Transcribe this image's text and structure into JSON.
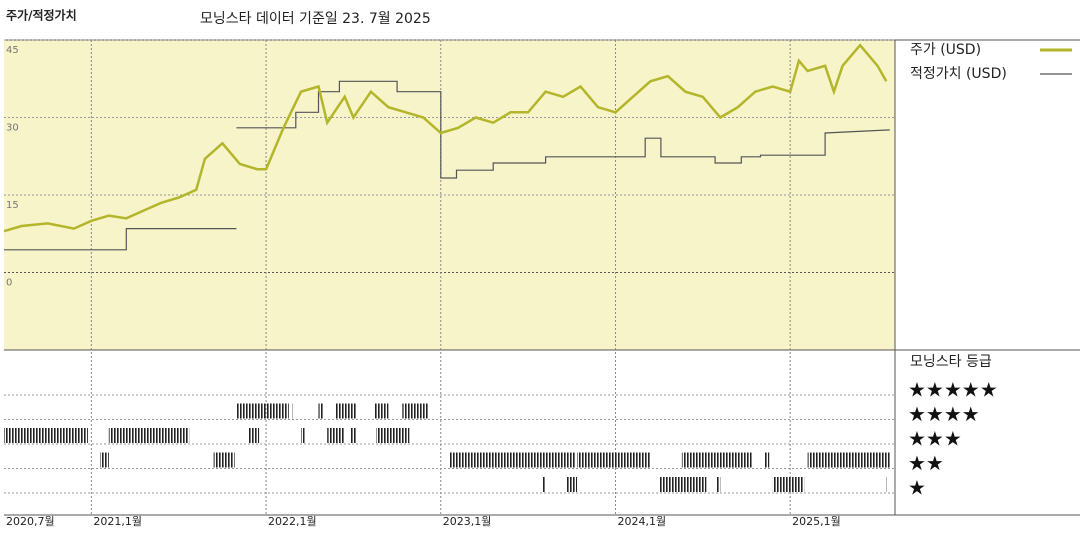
{
  "chart_data": {
    "type": "line",
    "title": "주가/적정가치",
    "subtitle": "모닝스타 데이터 기준일 23. 7월 2025",
    "xlim": [
      2020.5,
      2025.6
    ],
    "xticks": [
      {
        "value": 2020.5,
        "label": "2020,7월"
      },
      {
        "value": 2021,
        "label": "2021,1월"
      },
      {
        "value": 2022,
        "label": "2022,1월"
      },
      {
        "value": 2023,
        "label": "2023,1월"
      },
      {
        "value": 2024,
        "label": "2024,1월"
      },
      {
        "value": 2025,
        "label": "2025,1월"
      }
    ],
    "ylim": [
      -15,
      45
    ],
    "yticks": [
      0,
      15,
      30,
      45
    ],
    "grid": true,
    "series": [
      {
        "name": "주가 (USD)",
        "color": "#b3b52a",
        "x": [
          2020.5,
          2020.6,
          2020.75,
          2020.9,
          2021.0,
          2021.1,
          2021.2,
          2021.3,
          2021.4,
          2021.5,
          2021.6,
          2021.65,
          2021.75,
          2021.85,
          2021.95,
          2022.0,
          2022.1,
          2022.2,
          2022.3,
          2022.35,
          2022.45,
          2022.5,
          2022.6,
          2022.7,
          2022.8,
          2022.9,
          2023.0,
          2023.1,
          2023.2,
          2023.3,
          2023.4,
          2023.5,
          2023.6,
          2023.7,
          2023.8,
          2023.9,
          2024.0,
          2024.1,
          2024.2,
          2024.3,
          2024.4,
          2024.5,
          2024.6,
          2024.7,
          2024.8,
          2024.9,
          2025.0,
          2025.05,
          2025.1,
          2025.2,
          2025.25,
          2025.3,
          2025.4,
          2025.5,
          2025.55
        ],
        "values": [
          8,
          9,
          9.5,
          8.5,
          10,
          11,
          10.5,
          12,
          13.5,
          14.5,
          16,
          22,
          25,
          21,
          20,
          20,
          28,
          35,
          36,
          29,
          34,
          30,
          35,
          32,
          31,
          30,
          27,
          28,
          30,
          29,
          31,
          31,
          35,
          34,
          36,
          32,
          31,
          34,
          37,
          38,
          35,
          34,
          30,
          32,
          35,
          36,
          35,
          41,
          39,
          40,
          35,
          40,
          44,
          40,
          37
        ]
      },
      {
        "name": "적정가치 (USD)",
        "color": "#555555",
        "x": [
          2020.5,
          2021.2,
          2021.2,
          2021.83,
          2021.83,
          2021.83,
          2022.17,
          2022.17,
          2022.3,
          2022.3,
          2022.42,
          2022.42,
          2022.75,
          2022.75,
          2023.0,
          2023.0,
          2023.09,
          2023.09,
          2023.3,
          2023.3,
          2023.6,
          2023.6,
          2024.17,
          2024.17,
          2024.26,
          2024.26,
          2024.57,
          2024.57,
          2024.72,
          2024.72,
          2024.83,
          2024.83,
          2025.2,
          2025.2,
          2025.57
        ],
        "values": [
          4.4,
          4.4,
          8.5,
          8.5,
          null,
          28,
          28,
          31,
          31,
          35,
          35,
          37,
          37,
          35,
          35,
          18.3,
          18.3,
          19.8,
          19.8,
          21.2,
          21.2,
          22.4,
          22.4,
          26,
          26,
          22.4,
          22.4,
          21.2,
          21.2,
          22.4,
          22.4,
          22.7,
          22.7,
          27,
          27.6
        ]
      }
    ],
    "rating_title": "모닝스타 등급",
    "rating_labels": [
      "★★★★★",
      "★★★★",
      "★★★",
      "★★",
      "★"
    ],
    "rating_periods": {
      "start": [
        2020.5,
        2021.1,
        2021.7,
        2021.83,
        2022.15,
        2022.3,
        2022.4,
        2022.62,
        2022.78,
        2021.05,
        2021.9,
        2022.2,
        2022.35,
        2022.48,
        2022.63,
        2023.05,
        2023.78,
        2024.38,
        2024.85,
        2025.1,
        2023.58,
        2023.72,
        2024.25,
        2024.58,
        2024.9,
        2025.55
      ],
      "end": [
        2020.98,
        2021.56,
        2021.82,
        2022.13,
        2022.16,
        2022.33,
        2022.52,
        2022.7,
        2022.93,
        2021.1,
        2021.96,
        2022.22,
        2022.45,
        2022.52,
        2022.82,
        2023.77,
        2024.2,
        2024.78,
        2024.88,
        2025.57,
        2023.6,
        2023.78,
        2024.52,
        2024.6,
        2025.08,
        2025.56
      ],
      "stars": [
        3,
        3,
        2,
        4,
        4,
        4,
        4,
        4,
        4,
        2,
        3,
        3,
        3,
        3,
        3,
        2,
        2,
        2,
        2,
        2,
        1,
        1,
        1,
        1,
        1,
        1
      ]
    }
  }
}
